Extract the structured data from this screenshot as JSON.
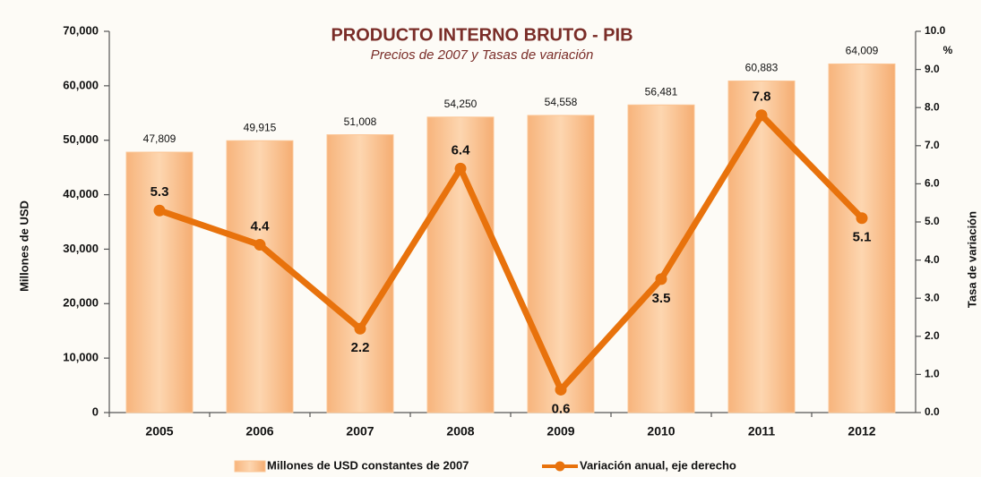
{
  "chart_data": {
    "type": "combo",
    "title": "PRODUCTO INTERNO BRUTO - PIB",
    "subtitle": "Precios de 2007 y Tasas de variación",
    "ylabel": "Millones de USD",
    "y2label": "Tasa de variación",
    "y2_unit_label": "%",
    "categories": [
      "2005",
      "2006",
      "2007",
      "2008",
      "2009",
      "2010",
      "2011",
      "2012"
    ],
    "series": [
      {
        "name": "Millones de USD constantes de 2007",
        "type": "bar",
        "color": "#fbc594",
        "values": [
          47809,
          49915,
          51008,
          54250,
          54558,
          56481,
          60883,
          64009
        ],
        "value_labels": [
          "47,809",
          "49,915",
          "51,008",
          "54,250",
          "54,558",
          "56,481",
          "60,883",
          "64,009"
        ]
      },
      {
        "name": "Variación anual, eje derecho",
        "type": "line",
        "axis": "y2",
        "color": "#e8720c",
        "values": [
          5.3,
          4.4,
          2.2,
          6.4,
          0.6,
          3.5,
          7.8,
          5.1
        ]
      }
    ],
    "ylim": [
      0,
      70000
    ],
    "yticks": [
      0,
      {
        "value": 10000,
        "label": "10,000"
      },
      {
        "value": 20000,
        "label": "20,000"
      },
      {
        "value": 30000,
        "label": "30,000"
      },
      {
        "value": 40000,
        "label": "40,000"
      },
      {
        "value": 50000,
        "label": "50,000"
      },
      {
        "value": 60000,
        "label": "60,000"
      },
      {
        "value": 70000,
        "label": "70,000"
      }
    ],
    "y2lim": [
      0,
      10
    ],
    "y2ticks": [
      {
        "value": 0,
        "label": "0.0"
      },
      {
        "value": 1,
        "label": "1.0"
      },
      {
        "value": 2,
        "label": "2.0"
      },
      {
        "value": 3,
        "label": "3.0"
      },
      {
        "value": 4,
        "label": "4.0"
      },
      {
        "value": 5,
        "label": "5.0"
      },
      {
        "value": 6,
        "label": "6.0"
      },
      {
        "value": 7,
        "label": "7.0"
      },
      {
        "value": 8,
        "label": "8.0"
      },
      {
        "value": 9,
        "label": "9.0"
      },
      {
        "value": 10,
        "label": "10.0"
      }
    ],
    "grid": false
  }
}
